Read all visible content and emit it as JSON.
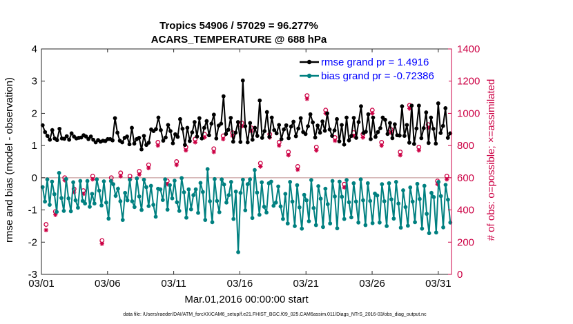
{
  "chart_data": {
    "type": "line",
    "title_line1": "Tropics 54906 / 57029 = 96.277%",
    "title_line2": "ACARS_TEMPERATURE @ 688 hPa",
    "xlabel": "Mar.01,2016 00:00:00 start",
    "ylabel_left": "rmse and bias (model - observation)",
    "ylabel_right": "# of obs: o=possible; ×=assimilated",
    "footer": "data file: /Users/raeder/DAI/ATM_forcXX/CAM6_setup/f.e21.FHIST_BGC.f09_025.CAM6assim.011/Diags_NTrS_2016-03/obs_diag_output.nc",
    "x_tick_labels": [
      "03/01",
      "03/06",
      "03/11",
      "03/16",
      "03/21",
      "03/26",
      "03/31"
    ],
    "x_tick_days": [
      1,
      6,
      11,
      16,
      21,
      26,
      31
    ],
    "xlim": [
      1,
      32
    ],
    "ylim_left": [
      -3,
      4
    ],
    "yticks_left": [
      "-3",
      "-2",
      "-1",
      "0",
      "1",
      "2",
      "3",
      "4"
    ],
    "ylim_right": [
      0,
      1400
    ],
    "yticks_right": [
      "0",
      "200",
      "400",
      "600",
      "800",
      "1000",
      "1200",
      "1400"
    ],
    "legend": [
      {
        "label": "rmse grand pr = 1.4916",
        "color": "#000000"
      },
      {
        "label": "bias grand pr = -0.72386",
        "color": "#008080"
      }
    ],
    "colors": {
      "rmse": "#000000",
      "bias": "#008080",
      "obs": "#cc0044",
      "zero_line": "#c8a0a0",
      "legend_text": "#0000ff"
    },
    "series": {
      "rmse": [
        1.63,
        1.42,
        1.3,
        1.18,
        1.48,
        1.22,
        1.17,
        1.52,
        1.22,
        1.21,
        1.29,
        1.18,
        1.38,
        1.28,
        1.22,
        1.24,
        1.25,
        1.32,
        1.28,
        1.2,
        1.28,
        1.18,
        1.1,
        1.17,
        1.12,
        1.15,
        1.14,
        1.2,
        1.2,
        1.16,
        1.85,
        1.4,
        1.15,
        1.1,
        1.24,
        1.28,
        1.04,
        1.55,
        1.06,
        1.2,
        1.24,
        0.88,
        1.3,
        1.02,
        1.09,
        1.5,
        1.45,
        1.51,
        1.87,
        1.48,
        1.15,
        1.25,
        1.64,
        1.45,
        1.07,
        1.35,
        1.27,
        1.82,
        1.52,
        1.02,
        1.55,
        1.14,
        1.41,
        1.73,
        1.28,
        1.85,
        1.22,
        1.55,
        1.76,
        1.32,
        1.68,
        1.96,
        1.22,
        1.62,
        1.68,
        2.53,
        1.36,
        1.49,
        1.86,
        1.12,
        1.4,
        1.73,
        1.11,
        3.02,
        1.6,
        1.1,
        1.7,
        1.18,
        1.55,
        1.3,
        2.4,
        1.24,
        1.45,
        2.04,
        1.27,
        1.87,
        1.48,
        1.38,
        1.64,
        1.2,
        1.5,
        1.63,
        1.23,
        1.59,
        1.74,
        1.29,
        1.53,
        1.85,
        1.42,
        1.36,
        1.6,
        1.97,
        1.72,
        1.25,
        1.62,
        1.4,
        1.75,
        1.46,
        2.0,
        1.5,
        1.3,
        1.47,
        1.82,
        1.13,
        1.64,
        1.03,
        1.87,
        1.16,
        1.3,
        1.86,
        1.24,
        1.73,
        2.22,
        1.39,
        1.43,
        1.97,
        1.2,
        1.87,
        1.27,
        1.42,
        1.54,
        1.87,
        1.8,
        1.36,
        1.7,
        1.23,
        1.66,
        1.32,
        1.31,
        2.22,
        1.3,
        1.64,
        1.09,
        2.24,
        1.05,
        1.53,
        2.24,
        1.23,
        1.54,
        2.03,
        1.08,
        1.87,
        1.52,
        1.06,
        2.31,
        1.39,
        1.61,
        2.16,
        1.24,
        1.38
      ],
      "bias": [
        -0.29,
        -0.74,
        -0.05,
        -0.84,
        -0.12,
        -0.51,
        -1.06,
        0.15,
        -0.63,
        -1.03,
        -0.04,
        -0.64,
        -1.04,
        -0.14,
        -0.7,
        -0.93,
        -0.1,
        -0.72,
        -0.8,
        -0.1,
        -0.9,
        -0.5,
        -0.8,
        -0.05,
        -0.4,
        -0.86,
        -0.11,
        -0.77,
        -1.27,
        -0.1,
        -0.2,
        -0.56,
        -0.34,
        -0.73,
        -1.31,
        -0.47,
        -0.7,
        -0.06,
        -0.73,
        -0.91,
        -0.02,
        -0.58,
        -1.0,
        -0.06,
        -0.29,
        -0.88,
        -0.25,
        -0.84,
        -1.21,
        -0.34,
        -0.36,
        -0.69,
        -0.05,
        -0.99,
        -0.23,
        -0.64,
        -0.09,
        -0.76,
        -1.03,
        -0.01,
        -0.45,
        -1.24,
        -0.36,
        -0.98,
        -0.54,
        -0.36,
        -1.09,
        -0.16,
        -0.44,
        -1.31,
        0.27,
        -0.73,
        -1.38,
        -0.04,
        -0.72,
        -1.07,
        -0.05,
        -0.21,
        -0.77,
        -0.54,
        -0.13,
        -1.28,
        -0.43,
        -2.31,
        -0.47,
        -0.06,
        -1.01,
        -0.2,
        -0.05,
        -1.25,
        0.24,
        -0.46,
        -1.15,
        -0.14,
        -0.9,
        -1.08,
        -0.17,
        -0.12,
        -0.87,
        -0.77,
        -0.27,
        -0.89,
        -1.28,
        -0.5,
        -1.42,
        -0.13,
        -0.74,
        -1.5,
        -0.23,
        -0.92,
        -1.58,
        -0.53,
        -0.7,
        -1.35,
        -0.07,
        -0.94,
        -1.47,
        -0.26,
        -0.65,
        -1.53,
        -0.34,
        -0.82,
        -1.42,
        -0.1,
        -0.58,
        -1.57,
        -0.12,
        -0.59,
        -1.28,
        -0.07,
        -0.76,
        -1.23,
        -0.17,
        -0.74,
        -1.39,
        -0.05,
        -0.7,
        -1.47,
        -0.17,
        -0.72,
        -1.41,
        -0.49,
        -0.55,
        -1.39,
        -0.2,
        -0.73,
        -1.5,
        -0.17,
        -0.67,
        -1.27,
        -0.13,
        -0.8,
        -1.55,
        -0.39,
        -0.91,
        -1.49,
        -0.3,
        -0.74,
        -1.38,
        -0.19,
        -0.66,
        -1.58,
        -0.25,
        -1.12,
        -1.72,
        -0.47,
        -0.6,
        -1.7,
        -0.13,
        -0.57,
        -1.54,
        -0.22,
        -0.68,
        -1.39
      ],
      "obs_possible_day": [
        310,
        390,
        600,
        530,
        520,
        610,
        210,
        600,
        630,
        610,
        640,
        680,
        820,
        580,
        700,
        790,
        840,
        870,
        780,
        860,
        880,
        940,
        910,
        690,
        870,
        820,
        760,
        670,
        1110,
        790,
        1020,
        850,
        560,
        880,
        870,
        1020,
        820,
        900,
        760,
        1050,
        790,
        930,
        580,
        610
      ],
      "obs_assimilated_day": [
        275,
        370,
        585,
        510,
        500,
        590,
        190,
        580,
        610,
        590,
        620,
        660,
        800,
        560,
        680,
        770,
        820,
        850,
        760,
        840,
        860,
        920,
        890,
        670,
        850,
        800,
        740,
        650,
        1090,
        770,
        1000,
        830,
        540,
        860,
        850,
        1000,
        800,
        880,
        740,
        1030,
        770,
        910,
        560,
        590
      ]
    }
  }
}
